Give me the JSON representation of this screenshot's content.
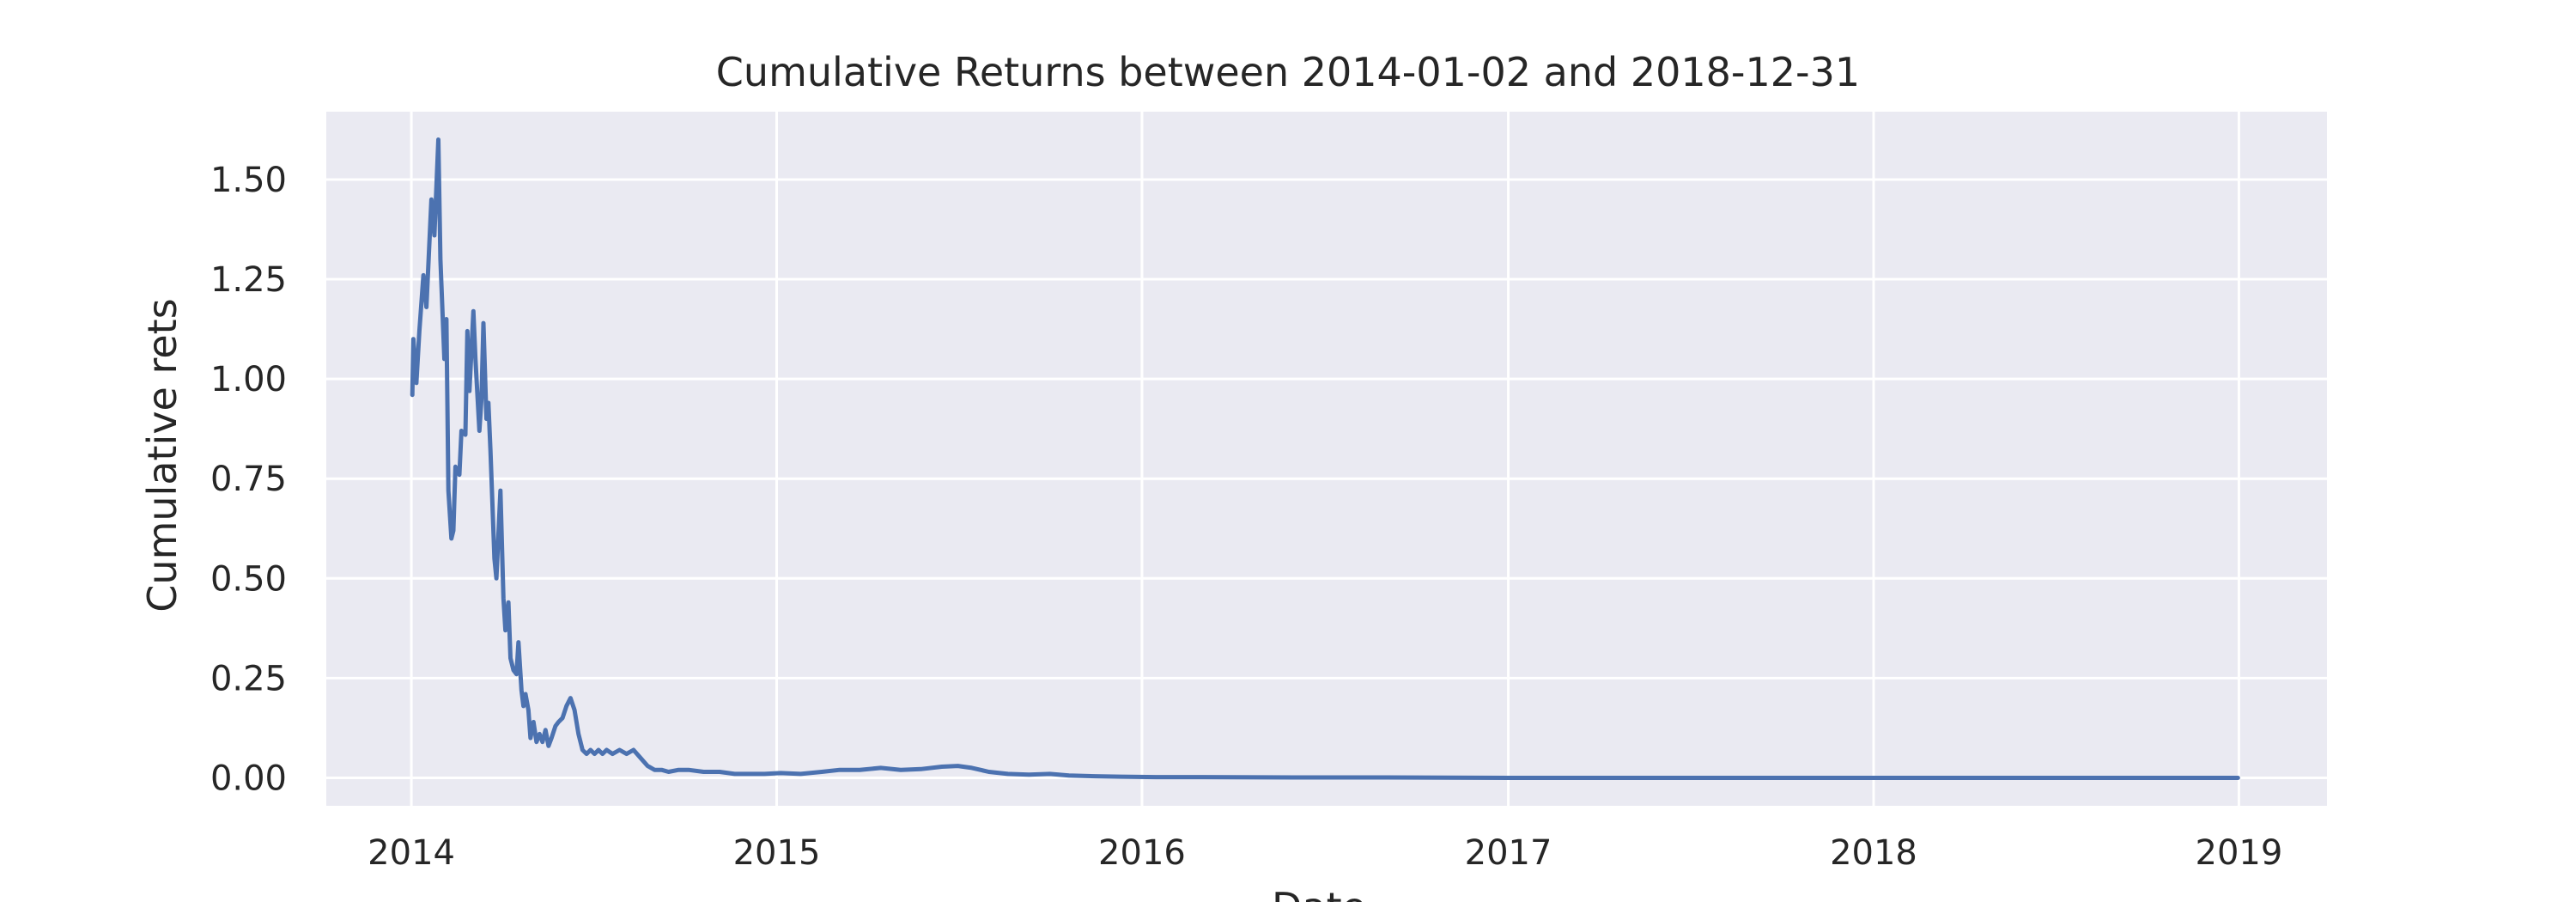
{
  "chart_data": {
    "type": "line",
    "title": "Cumulative Returns between 2014-01-02 and 2018-12-31",
    "xlabel": "Date",
    "ylabel": "Cumulative rets",
    "x_type": "date",
    "xlim": [
      "2013-10-08",
      "2019-03-30"
    ],
    "ylim": [
      -0.07,
      1.67
    ],
    "grid": true,
    "x_ticks": [
      "2014-01-01",
      "2015-01-01",
      "2016-01-01",
      "2017-01-01",
      "2018-01-01",
      "2019-01-01"
    ],
    "x_tick_labels": [
      "2014",
      "2015",
      "2016",
      "2017",
      "2018",
      "2019"
    ],
    "y_ticks": [
      0,
      0.25,
      0.5,
      0.75,
      1.0,
      1.25,
      1.5
    ],
    "y_tick_labels": [
      "0.00",
      "0.25",
      "0.50",
      "0.75",
      "1.00",
      "1.25",
      "1.50"
    ],
    "colors": {
      "background": "#eaeaf2",
      "grid": "#ffffff",
      "line": "#4c72b0",
      "text": "#262626"
    },
    "series": [
      {
        "x": [
          "2014-01-02",
          "2014-01-03",
          "2014-01-06",
          "2014-01-09",
          "2014-01-13",
          "2014-01-16",
          "2014-01-21",
          "2014-01-24",
          "2014-01-28",
          "2014-01-30",
          "2014-02-03",
          "2014-02-05",
          "2014-02-07",
          "2014-02-10",
          "2014-02-12",
          "2014-02-14",
          "2014-02-18",
          "2014-02-20",
          "2014-02-24",
          "2014-02-26",
          "2014-02-28",
          "2014-03-04",
          "2014-03-06",
          "2014-03-10",
          "2014-03-12",
          "2014-03-14",
          "2014-03-17",
          "2014-03-19",
          "2014-03-21",
          "2014-03-25",
          "2014-03-27",
          "2014-03-31",
          "2014-04-03",
          "2014-04-05",
          "2014-04-08",
          "2014-04-10",
          "2014-04-13",
          "2014-04-16",
          "2014-04-18",
          "2014-04-21",
          "2014-04-23",
          "2014-04-25",
          "2014-04-28",
          "2014-04-30",
          "2014-05-03",
          "2014-05-06",
          "2014-05-09",
          "2014-05-12",
          "2014-05-15",
          "2014-05-18",
          "2014-05-21",
          "2014-05-25",
          "2014-05-28",
          "2014-06-01",
          "2014-06-05",
          "2014-06-09",
          "2014-06-13",
          "2014-06-17",
          "2014-06-21",
          "2014-06-25",
          "2014-06-29",
          "2014-07-03",
          "2014-07-07",
          "2014-07-11",
          "2014-07-15",
          "2014-07-21",
          "2014-07-28",
          "2014-08-04",
          "2014-08-11",
          "2014-08-18",
          "2014-08-25",
          "2014-09-01",
          "2014-09-08",
          "2014-09-15",
          "2014-09-25",
          "2014-10-05",
          "2014-10-20",
          "2014-11-05",
          "2014-11-20",
          "2014-12-05",
          "2014-12-20",
          "2015-01-05",
          "2015-01-25",
          "2015-02-15",
          "2015-03-05",
          "2015-03-25",
          "2015-04-15",
          "2015-05-05",
          "2015-05-25",
          "2015-06-15",
          "2015-07-01",
          "2015-07-15",
          "2015-08-01",
          "2015-08-20",
          "2015-09-10",
          "2015-10-01",
          "2015-10-20",
          "2015-11-15",
          "2015-12-10",
          "2016-01-15",
          "2016-03-01",
          "2016-06-01",
          "2016-09-01",
          "2017-01-01",
          "2017-06-01",
          "2018-01-01",
          "2018-06-01",
          "2018-12-31"
        ],
        "values": [
          0.96,
          1.1,
          0.99,
          1.12,
          1.26,
          1.18,
          1.45,
          1.36,
          1.6,
          1.3,
          1.05,
          1.15,
          0.72,
          0.6,
          0.62,
          0.78,
          0.76,
          0.87,
          0.86,
          1.12,
          0.97,
          1.17,
          1.05,
          0.87,
          0.95,
          1.14,
          0.9,
          0.94,
          0.82,
          0.55,
          0.5,
          0.72,
          0.45,
          0.37,
          0.44,
          0.3,
          0.27,
          0.26,
          0.34,
          0.22,
          0.18,
          0.21,
          0.17,
          0.1,
          0.14,
          0.09,
          0.11,
          0.09,
          0.12,
          0.08,
          0.1,
          0.13,
          0.14,
          0.15,
          0.18,
          0.2,
          0.17,
          0.11,
          0.07,
          0.06,
          0.07,
          0.06,
          0.07,
          0.06,
          0.07,
          0.06,
          0.07,
          0.06,
          0.07,
          0.05,
          0.03,
          0.02,
          0.02,
          0.015,
          0.02,
          0.02,
          0.015,
          0.015,
          0.01,
          0.01,
          0.01,
          0.012,
          0.01,
          0.015,
          0.02,
          0.02,
          0.025,
          0.02,
          0.022,
          0.028,
          0.03,
          0.025,
          0.015,
          0.01,
          0.008,
          0.01,
          0.006,
          0.004,
          0.003,
          0.002,
          0.002,
          0.001,
          0.001,
          0.0,
          0.0,
          0.0,
          0.0,
          0.0
        ]
      }
    ]
  }
}
